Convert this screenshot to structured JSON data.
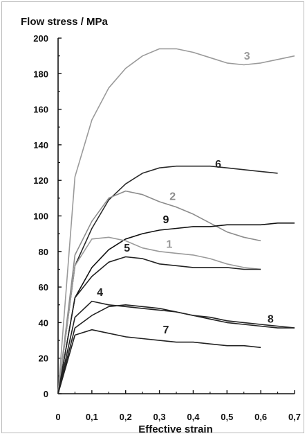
{
  "chart_data": {
    "type": "line",
    "title": "",
    "ylabel": "Flow stress  / MPa",
    "xlabel": "Effective strain",
    "xlim": [
      0,
      0.7
    ],
    "ylim": [
      0,
      200
    ],
    "x_ticks": [
      "0",
      "0,1",
      "0,2",
      "0,3",
      "0,4",
      "0,5",
      "0,6",
      "0,7"
    ],
    "x_tick_values": [
      0,
      0.1,
      0.2,
      0.3,
      0.4,
      0.5,
      0.6,
      0.7
    ],
    "y_ticks": [
      "0",
      "20",
      "40",
      "60",
      "80",
      "100",
      "120",
      "140",
      "160",
      "180",
      "200"
    ],
    "y_tick_values": [
      0,
      20,
      40,
      60,
      80,
      100,
      120,
      140,
      160,
      180,
      200
    ],
    "grid": false,
    "legend": "none",
    "series": [
      {
        "label": "3",
        "color": "#9a9a9a",
        "label_pos": [
          0.55,
          188
        ],
        "points": [
          [
            0,
            0
          ],
          [
            0.05,
            122
          ],
          [
            0.1,
            154
          ],
          [
            0.15,
            172
          ],
          [
            0.2,
            183
          ],
          [
            0.25,
            190
          ],
          [
            0.3,
            194
          ],
          [
            0.35,
            194
          ],
          [
            0.4,
            192
          ],
          [
            0.45,
            189
          ],
          [
            0.5,
            186
          ],
          [
            0.55,
            185
          ],
          [
            0.6,
            186
          ],
          [
            0.65,
            188
          ],
          [
            0.7,
            190
          ]
        ]
      },
      {
        "label": "6",
        "color": "#2a2a2a",
        "label_pos": [
          0.465,
          127
        ],
        "points": [
          [
            0,
            0
          ],
          [
            0.05,
            72
          ],
          [
            0.1,
            93
          ],
          [
            0.15,
            109
          ],
          [
            0.2,
            118
          ],
          [
            0.25,
            124
          ],
          [
            0.3,
            127
          ],
          [
            0.35,
            128
          ],
          [
            0.4,
            128
          ],
          [
            0.45,
            128
          ],
          [
            0.5,
            127
          ],
          [
            0.55,
            126
          ],
          [
            0.6,
            125
          ],
          [
            0.65,
            124
          ]
        ]
      },
      {
        "label": "2",
        "color": "#8c8c8c",
        "label_pos": [
          0.33,
          109
        ],
        "points": [
          [
            0,
            0
          ],
          [
            0.05,
            78
          ],
          [
            0.1,
            97
          ],
          [
            0.15,
            110
          ],
          [
            0.2,
            114
          ],
          [
            0.25,
            112
          ],
          [
            0.3,
            108
          ],
          [
            0.35,
            105
          ],
          [
            0.4,
            101
          ],
          [
            0.45,
            96
          ],
          [
            0.5,
            91
          ],
          [
            0.55,
            88
          ],
          [
            0.6,
            86
          ]
        ]
      },
      {
        "label": "9",
        "color": "#111111",
        "label_pos": [
          0.31,
          96
        ],
        "points": [
          [
            0,
            0
          ],
          [
            0.05,
            54
          ],
          [
            0.1,
            71
          ],
          [
            0.15,
            81
          ],
          [
            0.2,
            87
          ],
          [
            0.25,
            90
          ],
          [
            0.3,
            92
          ],
          [
            0.35,
            93
          ],
          [
            0.4,
            94
          ],
          [
            0.45,
            94
          ],
          [
            0.5,
            95
          ],
          [
            0.55,
            95
          ],
          [
            0.6,
            95
          ],
          [
            0.65,
            96
          ],
          [
            0.7,
            96
          ]
        ]
      },
      {
        "label": "1",
        "color": "#9a9a9a",
        "label_pos": [
          0.32,
          82
        ],
        "points": [
          [
            0,
            0
          ],
          [
            0.05,
            72
          ],
          [
            0.1,
            87
          ],
          [
            0.15,
            88
          ],
          [
            0.2,
            86
          ],
          [
            0.25,
            82
          ],
          [
            0.3,
            80
          ],
          [
            0.35,
            79
          ],
          [
            0.4,
            78
          ],
          [
            0.45,
            76
          ],
          [
            0.5,
            73
          ],
          [
            0.55,
            71
          ],
          [
            0.6,
            70
          ]
        ]
      },
      {
        "label": "5",
        "color": "#222222",
        "label_pos": [
          0.195,
          80
        ],
        "points": [
          [
            0,
            0
          ],
          [
            0.05,
            54
          ],
          [
            0.1,
            66
          ],
          [
            0.15,
            74
          ],
          [
            0.2,
            77
          ],
          [
            0.25,
            76
          ],
          [
            0.3,
            73
          ],
          [
            0.35,
            72
          ],
          [
            0.4,
            71
          ],
          [
            0.45,
            71
          ],
          [
            0.5,
            71
          ],
          [
            0.55,
            70
          ],
          [
            0.6,
            70
          ]
        ]
      },
      {
        "label": "4",
        "color": "#222222",
        "label_pos": [
          0.115,
          55
        ],
        "points": [
          [
            0,
            0
          ],
          [
            0.05,
            43
          ],
          [
            0.1,
            52
          ],
          [
            0.15,
            50
          ],
          [
            0.2,
            49
          ],
          [
            0.25,
            48
          ],
          [
            0.3,
            47
          ],
          [
            0.35,
            46
          ],
          [
            0.4,
            44
          ],
          [
            0.45,
            42
          ],
          [
            0.5,
            40
          ],
          [
            0.55,
            39
          ],
          [
            0.6,
            38
          ],
          [
            0.65,
            37
          ],
          [
            0.7,
            37
          ]
        ]
      },
      {
        "label": "8",
        "color": "#222222",
        "label_pos": [
          0.62,
          40
        ],
        "points": [
          [
            0,
            0
          ],
          [
            0.05,
            37
          ],
          [
            0.1,
            44
          ],
          [
            0.15,
            49
          ],
          [
            0.2,
            50
          ],
          [
            0.25,
            49
          ],
          [
            0.3,
            48
          ],
          [
            0.35,
            46
          ],
          [
            0.4,
            44
          ],
          [
            0.45,
            43
          ],
          [
            0.5,
            41
          ],
          [
            0.55,
            40
          ],
          [
            0.6,
            39
          ],
          [
            0.65,
            38
          ],
          [
            0.7,
            37
          ]
        ]
      },
      {
        "label": "7",
        "color": "#222222",
        "label_pos": [
          0.31,
          34
        ],
        "points": [
          [
            0,
            0
          ],
          [
            0.05,
            33
          ],
          [
            0.1,
            36
          ],
          [
            0.15,
            34
          ],
          [
            0.2,
            32
          ],
          [
            0.25,
            31
          ],
          [
            0.3,
            30
          ],
          [
            0.35,
            29
          ],
          [
            0.4,
            29
          ],
          [
            0.45,
            28
          ],
          [
            0.5,
            27
          ],
          [
            0.55,
            27
          ],
          [
            0.6,
            26
          ]
        ]
      }
    ]
  }
}
